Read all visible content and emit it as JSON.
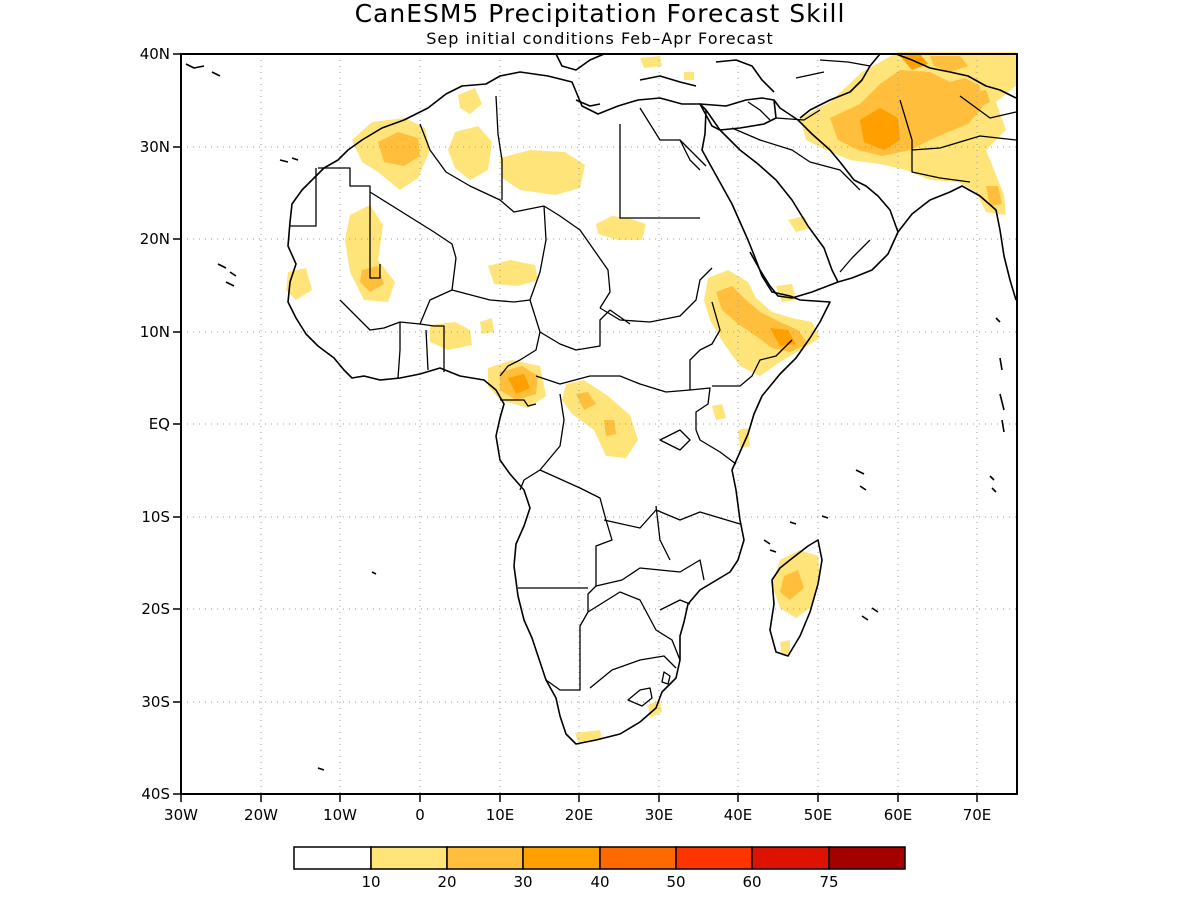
{
  "title": "CanESM5 Precipitation Forecast Skill",
  "subtitle": "Sep initial conditions  Feb–Apr Forecast",
  "x_ticks": [
    "30W",
    "20W",
    "10W",
    "0",
    "10E",
    "20E",
    "30E",
    "40E",
    "50E",
    "60E",
    "70E"
  ],
  "y_ticks": [
    "40N",
    "30N",
    "20N",
    "10N",
    "EQ",
    "10S",
    "20S",
    "30S",
    "40S"
  ],
  "colorbar": {
    "labels": [
      "10",
      "20",
      "30",
      "40",
      "50",
      "60",
      "75"
    ],
    "colors": [
      "#ffffff",
      "#ffe47a",
      "#ffbe3c",
      "#ff9f00",
      "#ff6a00",
      "#ff3500",
      "#dd1200",
      "#a50000"
    ]
  }
}
